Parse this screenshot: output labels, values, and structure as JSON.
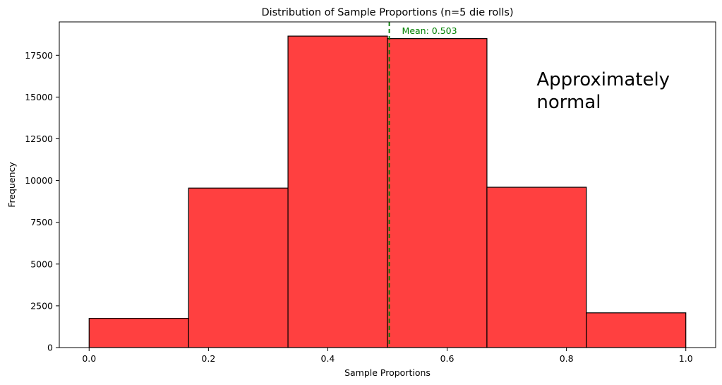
{
  "chart_data": {
    "type": "bar",
    "title": "Distribution of Sample Proportions (n=5 die rolls)",
    "xlabel": "Sample Proportions",
    "ylabel": "Frequency",
    "xlim": [
      -0.05,
      1.05
    ],
    "ylim": [
      0,
      19500
    ],
    "x_ticks": [
      0.0,
      0.2,
      0.4,
      0.6,
      0.8,
      1.0
    ],
    "x_tick_labels": [
      "0.0",
      "0.2",
      "0.4",
      "0.6",
      "0.8",
      "1.0"
    ],
    "y_ticks": [
      0,
      2500,
      5000,
      7500,
      10000,
      12500,
      15000,
      17500
    ],
    "y_tick_labels": [
      "0",
      "2500",
      "5000",
      "7500",
      "10000",
      "12500",
      "15000",
      "17500"
    ],
    "bins": [
      {
        "start": 0.0,
        "end": 0.1667,
        "value": 1750
      },
      {
        "start": 0.1667,
        "end": 0.3333,
        "value": 9550
      },
      {
        "start": 0.3333,
        "end": 0.5,
        "value": 18650
      },
      {
        "start": 0.5,
        "end": 0.6667,
        "value": 18500
      },
      {
        "start": 0.6667,
        "end": 0.8333,
        "value": 9600
      },
      {
        "start": 0.8333,
        "end": 1.0,
        "value": 2080
      }
    ],
    "bar_color": "#ff4040",
    "bar_edge_color": "#000000",
    "mean_line": {
      "x": 0.503,
      "label": "Mean: 0.503",
      "color": "#008000"
    },
    "annotation": {
      "lines": [
        "Approximately",
        "normal"
      ],
      "x": 0.75,
      "y": 15700
    },
    "grid": false
  }
}
